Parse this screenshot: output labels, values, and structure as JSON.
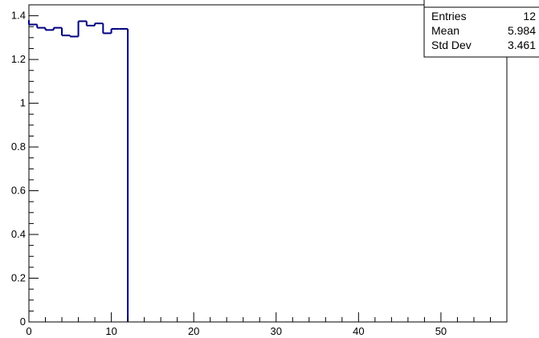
{
  "chart_data": {
    "type": "bar",
    "title": "",
    "xlabel": "",
    "ylabel": "",
    "xlim": [
      0,
      58
    ],
    "ylim": [
      0,
      1.45
    ],
    "grid": false,
    "x_ticks": [
      "0",
      "10",
      "20",
      "30",
      "40",
      "50"
    ],
    "y_ticks": [
      "0",
      "0.2",
      "0.4",
      "0.6",
      "0.8",
      "1",
      "1.2",
      "1.4"
    ],
    "bin_width": 1,
    "bins": [
      {
        "x_low": 0,
        "x_high": 1,
        "value": 1.36
      },
      {
        "x_low": 1,
        "x_high": 2,
        "value": 1.345
      },
      {
        "x_low": 2,
        "x_high": 3,
        "value": 1.335
      },
      {
        "x_low": 3,
        "x_high": 4,
        "value": 1.345
      },
      {
        "x_low": 4,
        "x_high": 5,
        "value": 1.31
      },
      {
        "x_low": 5,
        "x_high": 6,
        "value": 1.305
      },
      {
        "x_low": 6,
        "x_high": 7,
        "value": 1.375
      },
      {
        "x_low": 7,
        "x_high": 8,
        "value": 1.355
      },
      {
        "x_low": 8,
        "x_high": 9,
        "value": 1.365
      },
      {
        "x_low": 9,
        "x_high": 10,
        "value": 1.32
      },
      {
        "x_low": 10,
        "x_high": 11,
        "value": 1.34
      },
      {
        "x_low": 11,
        "x_high": 12,
        "value": 1.34
      }
    ],
    "first_bin_pre_step": 1.38,
    "line_color": "#000080",
    "stats_box": {
      "entries_label": "Entries",
      "entries_value": "12",
      "mean_label": "Mean",
      "mean_value": "5.984",
      "stddev_label": "Std Dev",
      "stddev_value": "3.461"
    }
  }
}
